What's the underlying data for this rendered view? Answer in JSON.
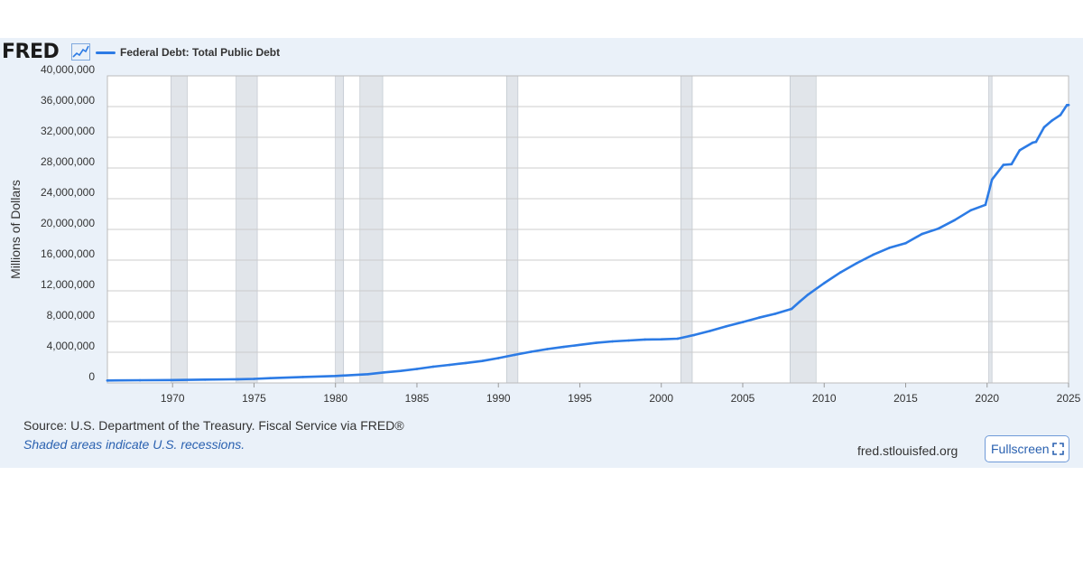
{
  "header": {
    "logo_text": "FRED",
    "logo_icon": "chart-line-icon",
    "legend_label": "Federal Debt: Total Public Debt"
  },
  "colors": {
    "series": "#2c7be5",
    "recession": "#e1e5ea",
    "panel": "#eaf1f9",
    "plot_bg": "#ffffff",
    "grid": "#cccccc",
    "link": "#2a61b0"
  },
  "footer": {
    "source": "Source: U.S. Department of the Treasury. Fiscal Service via FRED®",
    "note": "Shaded areas indicate U.S. recessions.",
    "site": "fred.stlouisfed.org",
    "fullscreen_label": "Fullscreen",
    "fullscreen_icon": "expand-icon"
  },
  "chart_data": {
    "type": "line",
    "title": "",
    "xlabel": "",
    "ylabel": "Millions of Dollars",
    "xlim": [
      1966.0,
      2025.0
    ],
    "ylim": [
      0,
      40000000
    ],
    "grid": true,
    "legend_position": "top-left",
    "x_ticks": [
      1970,
      1975,
      1980,
      1985,
      1990,
      1995,
      2000,
      2005,
      2010,
      2015,
      2020,
      2025
    ],
    "x_tick_labels": [
      "1970",
      "1975",
      "1980",
      "1985",
      "1990",
      "1995",
      "2000",
      "2005",
      "2010",
      "2015",
      "2020",
      "2025"
    ],
    "y_ticks": [
      0,
      4000000,
      8000000,
      12000000,
      16000000,
      20000000,
      24000000,
      28000000,
      32000000,
      36000000,
      40000000
    ],
    "y_tick_labels": [
      "0",
      "4,000,000",
      "8,000,000",
      "12,000,000",
      "16,000,000",
      "20,000,000",
      "24,000,000",
      "28,000,000",
      "32,000,000",
      "36,000,000",
      "40,000,000"
    ],
    "recessions": [
      [
        1969.9,
        1970.9
      ],
      [
        1973.9,
        1975.2
      ],
      [
        1980.0,
        1980.5
      ],
      [
        1981.5,
        1982.9
      ],
      [
        1990.5,
        1991.2
      ],
      [
        2001.2,
        2001.9
      ],
      [
        2007.9,
        2009.5
      ],
      [
        2020.1,
        2020.3
      ]
    ],
    "series": [
      {
        "name": "Federal Debt: Total Public Debt",
        "x": [
          1966.0,
          1968.0,
          1970.0,
          1972.0,
          1974.0,
          1975.0,
          1976.0,
          1978.0,
          1980.0,
          1982.0,
          1983.0,
          1984.0,
          1985.0,
          1986.0,
          1987.0,
          1988.0,
          1989.0,
          1990.0,
          1991.0,
          1992.0,
          1993.0,
          1994.0,
          1995.0,
          1996.0,
          1997.0,
          1998.0,
          1999.0,
          2000.0,
          2001.0,
          2002.0,
          2003.0,
          2004.0,
          2005.0,
          2006.0,
          2007.0,
          2008.0,
          2008.5,
          2009.0,
          2010.0,
          2011.0,
          2012.0,
          2013.0,
          2014.0,
          2015.0,
          2016.0,
          2017.0,
          2018.0,
          2019.0,
          2019.9,
          2020.3,
          2021.0,
          2021.5,
          2022.0,
          2022.8,
          2023.0,
          2023.5,
          2024.0,
          2024.5,
          2024.9,
          2025.0
        ],
        "values": [
          320000,
          350000,
          380000,
          430000,
          480000,
          530000,
          620000,
          780000,
          910000,
          1140000,
          1380000,
          1570000,
          1820000,
          2120000,
          2350000,
          2600000,
          2860000,
          3230000,
          3660000,
          4060000,
          4410000,
          4690000,
          4970000,
          5220000,
          5410000,
          5530000,
          5660000,
          5680000,
          5770000,
          6230000,
          6780000,
          7380000,
          7930000,
          8510000,
          9010000,
          9650000,
          10600000,
          11500000,
          13000000,
          14400000,
          15600000,
          16700000,
          17600000,
          18200000,
          19400000,
          20100000,
          21200000,
          22500000,
          23200000,
          26500000,
          28400000,
          28500000,
          30300000,
          31300000,
          31400000,
          33300000,
          34200000,
          34900000,
          36200000,
          36200000
        ]
      }
    ]
  }
}
